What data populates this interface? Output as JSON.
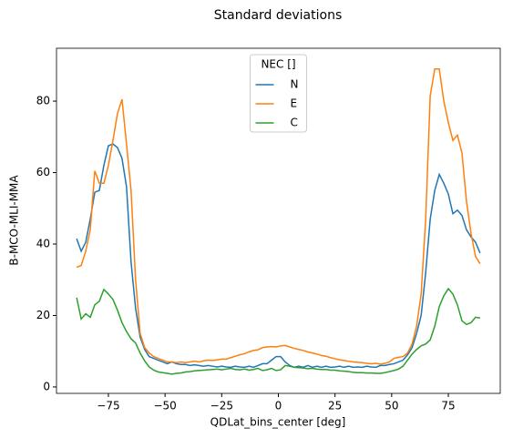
{
  "chart_data": {
    "type": "line",
    "title": "Standard deviations",
    "xlabel": "QDLat_bins_center [deg]",
    "ylabel": "B-MCO-MLI-MMA",
    "legend_title": "NEC []",
    "legend": "upper center",
    "xlim": [
      -97.9,
      97.9
    ],
    "ylim": [
      -1.8,
      94.8
    ],
    "xticks": [
      {
        "value": -75,
        "label": "−75"
      },
      {
        "value": -50,
        "label": "−50"
      },
      {
        "value": -25,
        "label": "−25"
      },
      0,
      25,
      50,
      75
    ],
    "yticks": [
      0,
      20,
      40,
      60,
      80
    ],
    "x": [
      -89,
      -87,
      -85,
      -83,
      -81,
      -79,
      -77,
      -75,
      -73,
      -71,
      -69,
      -67,
      -65,
      -63,
      -61,
      -59,
      -57,
      -55,
      -53,
      -51,
      -49,
      -47,
      -45,
      -43,
      -41,
      -39,
      -37,
      -35,
      -33,
      -31,
      -29,
      -27,
      -25,
      -23,
      -21,
      -19,
      -17,
      -15,
      -13,
      -11,
      -9,
      -7,
      -5,
      -3,
      -1,
      1,
      3,
      5,
      7,
      9,
      11,
      13,
      15,
      17,
      19,
      21,
      23,
      25,
      27,
      29,
      31,
      33,
      35,
      37,
      39,
      41,
      43,
      45,
      47,
      49,
      51,
      53,
      55,
      57,
      59,
      61,
      63,
      65,
      67,
      69,
      71,
      73,
      75,
      77,
      79,
      81,
      83,
      85,
      87,
      89
    ],
    "series": [
      {
        "name": "N",
        "color": "#1f77b4",
        "values": [
          41.5,
          38,
          40.5,
          47,
          54.5,
          55,
          62,
          67.5,
          68,
          67,
          64,
          56,
          35,
          22,
          14,
          10.5,
          8.5,
          8,
          7.5,
          7,
          6.5,
          7,
          6.5,
          6.3,
          6.3,
          6,
          6.2,
          6,
          5.8,
          6,
          5.8,
          5.6,
          5.8,
          5.6,
          5.5,
          5.8,
          5.6,
          5.5,
          5.8,
          5.5,
          6,
          6.5,
          6.5,
          7.5,
          8.5,
          8.5,
          7,
          6,
          5.5,
          5.8,
          5.5,
          6,
          5.5,
          5.8,
          5.5,
          5.8,
          5.5,
          5.6,
          5.8,
          5.5,
          5.8,
          5.5,
          5.6,
          5.5,
          5.8,
          5.6,
          5.5,
          6,
          6,
          6.3,
          6.5,
          7,
          7.5,
          9,
          11,
          15,
          20,
          32,
          47,
          55,
          59.5,
          57,
          54,
          48.5,
          49.5,
          48,
          44,
          42,
          40.5,
          37.5
        ]
      },
      {
        "name": "E",
        "color": "#ff7f0e",
        "values": [
          33.5,
          34,
          38,
          44,
          60.5,
          57,
          57,
          62,
          69,
          76.5,
          80.5,
          68,
          55,
          30,
          15,
          11,
          9.5,
          8.5,
          8,
          7.5,
          7,
          7,
          6.8,
          7,
          6.8,
          7,
          7.2,
          7,
          7.3,
          7.5,
          7.4,
          7.6,
          7.8,
          7.8,
          8.2,
          8.6,
          9,
          9.3,
          9.8,
          10.2,
          10.4,
          11,
          11.2,
          11.3,
          11.2,
          11.5,
          11.6,
          11.2,
          10.8,
          10.5,
          10.2,
          9.8,
          9.5,
          9.2,
          8.8,
          8.6,
          8.2,
          7.9,
          7.6,
          7.4,
          7.2,
          7,
          6.9,
          6.8,
          6.6,
          6.5,
          6.6,
          6.4,
          6.6,
          7,
          8,
          8.3,
          8.5,
          9.5,
          12,
          17,
          26,
          47,
          81.5,
          89,
          89,
          80,
          74,
          69,
          70.5,
          65.5,
          52,
          43,
          36.5,
          34.5
        ]
      },
      {
        "name": "C",
        "color": "#2ca02c",
        "values": [
          25,
          19,
          20.5,
          19.5,
          23,
          24,
          27.3,
          26,
          24.5,
          21.5,
          18,
          15.5,
          13.5,
          12.3,
          9.5,
          7.3,
          5.6,
          4.7,
          4.2,
          4,
          3.8,
          3.6,
          3.8,
          3.9,
          4.2,
          4.3,
          4.5,
          4.6,
          4.7,
          4.8,
          4.9,
          5,
          4.8,
          5,
          5.2,
          4.9,
          4.8,
          5,
          4.7,
          4.9,
          5.2,
          4.6,
          4.8,
          5.2,
          4.6,
          4.8,
          6,
          5.8,
          5.5,
          5.4,
          5.3,
          5.1,
          5.2,
          5,
          4.9,
          4.9,
          4.7,
          4.7,
          4.5,
          4.4,
          4.3,
          4.1,
          4,
          4,
          3.9,
          3.9,
          3.8,
          3.8,
          4,
          4.3,
          4.6,
          5,
          5.8,
          7.5,
          9.2,
          10.5,
          11.5,
          12,
          13.2,
          17,
          22.5,
          25.5,
          27.5,
          26,
          23,
          18.5,
          17.5,
          18,
          19.5,
          19.3
        ]
      }
    ]
  }
}
